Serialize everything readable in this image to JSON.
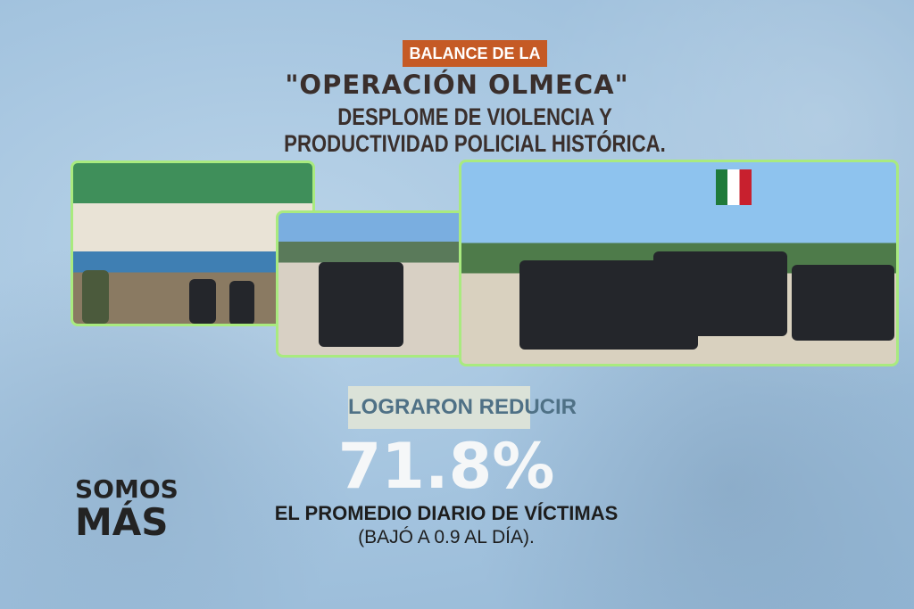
{
  "header": {
    "badge": "BALANCE DE LA",
    "title": "\"OPERACIÓN OLMECA\"",
    "subtitle_line1": "DESPLOME DE VIOLENCIA Y",
    "subtitle_line2": "PRODUCTIVIDAD POLICIAL HISTÓRICA."
  },
  "stat": {
    "label": "LOGRARON REDUCIR",
    "value": "71.8%",
    "line1": "EL PROMEDIO DIARIO DE VÍCTIMAS",
    "line2": "(BAJÓ A 0.9 AL DÍA)."
  },
  "logo": {
    "line1": "SOMOS",
    "line2": "MÁS"
  },
  "colors": {
    "badge": "#c55a25",
    "photo_border": "#a9ea7f",
    "background": "#a4c4df"
  }
}
